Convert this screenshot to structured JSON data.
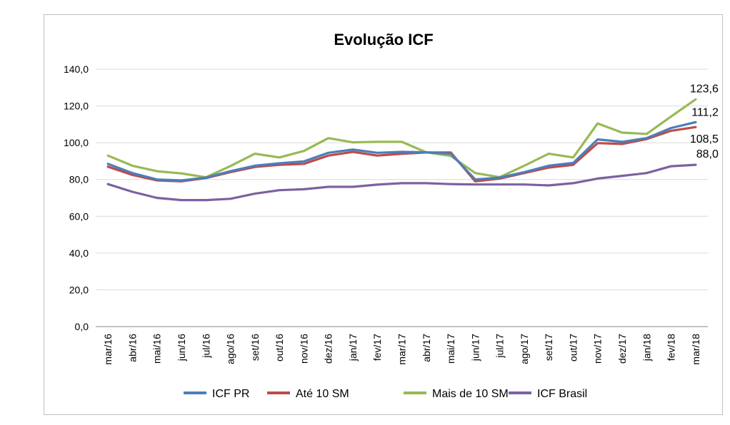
{
  "chart_data": {
    "type": "line",
    "title": "Evolução ICF",
    "categories": [
      "mar/16",
      "abr/16",
      "mai/16",
      "jun/16",
      "jul/16",
      "ago/16",
      "set/16",
      "out/16",
      "nov/16",
      "dez/16",
      "jan/17",
      "fev/17",
      "mar/17",
      "abr/17",
      "mai/17",
      "jun/17",
      "jul/17",
      "ago/17",
      "set/17",
      "out/17",
      "nov/17",
      "dez/17",
      "jan/18",
      "fev/18",
      "mar/18"
    ],
    "ylim": [
      0,
      140
    ],
    "yticks": [
      "0,0",
      "20,0",
      "40,0",
      "60,0",
      "80,0",
      "100,0",
      "120,0",
      "140,0"
    ],
    "grid": true,
    "legend_position": "bottom",
    "series": [
      {
        "name": "ICF PR",
        "color": "#4a7ebb",
        "values": [
          88.5,
          83.5,
          80.0,
          79.5,
          81.0,
          84.5,
          87.5,
          88.8,
          89.8,
          94.5,
          96.3,
          94.5,
          95.0,
          94.8,
          94.0,
          80.0,
          81.0,
          84.0,
          87.5,
          89.0,
          101.8,
          100.5,
          102.5,
          108.0,
          111.2
        ]
      },
      {
        "name": "Até 10 SM",
        "color": "#be4b48",
        "values": [
          87.0,
          82.5,
          79.5,
          79.0,
          80.8,
          84.0,
          86.8,
          88.0,
          88.5,
          93.0,
          95.0,
          93.0,
          94.0,
          94.7,
          94.7,
          79.0,
          80.5,
          83.5,
          86.5,
          88.0,
          99.8,
          99.3,
          102.0,
          106.5,
          108.5
        ]
      },
      {
        "name": "Mais de 10 SM",
        "color": "#98b954",
        "values": [
          93.0,
          87.5,
          84.5,
          83.3,
          81.2,
          87.3,
          94.0,
          92.0,
          95.5,
          102.5,
          100.2,
          100.5,
          100.5,
          94.8,
          92.8,
          83.5,
          81.3,
          87.5,
          94.0,
          92.0,
          110.5,
          105.5,
          104.8,
          114.3,
          123.6
        ]
      },
      {
        "name": "ICF Brasil",
        "color": "#7d60a0",
        "values": [
          77.5,
          73.3,
          70.0,
          68.8,
          68.8,
          69.5,
          72.3,
          74.2,
          74.7,
          76.0,
          76.0,
          77.2,
          78.0,
          78.0,
          77.5,
          77.3,
          77.3,
          77.3,
          76.8,
          78.0,
          80.5,
          82.0,
          83.5,
          87.2,
          88.0
        ]
      }
    ],
    "data_labels": [
      "123,6",
      "111,2",
      "108,5",
      "88,0"
    ]
  }
}
